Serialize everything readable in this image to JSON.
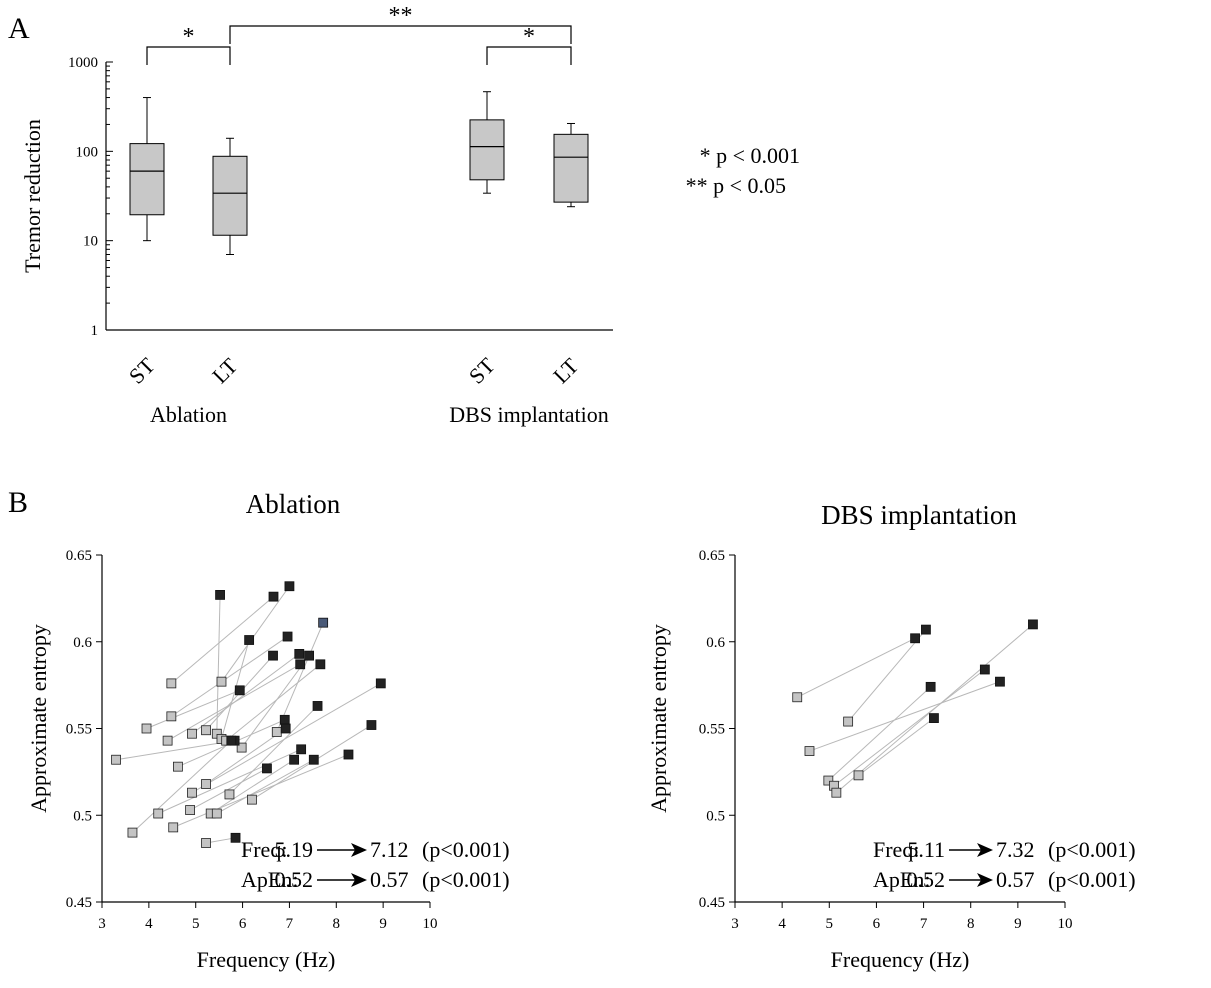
{
  "panel_labels": {
    "a": "A",
    "b": "B"
  },
  "significance_legend": {
    "single": "* p < 0.001",
    "double": "** p < 0.05"
  },
  "colors": {
    "box_fill": "#c8c8c8",
    "early_marker": "#c4c4c4",
    "late_marker": "#222222",
    "line": "#b8b8b8",
    "highlight_marker": "#4a5a78"
  },
  "chart_data": [
    {
      "type": "box",
      "panel": "A",
      "ylabel": "Tremor reduction",
      "yscale": "log",
      "ylim": [
        1,
        1000
      ],
      "yticks": [
        "1",
        "10",
        "100",
        "1000"
      ],
      "group_labels": [
        "Ablation",
        "DBS implantation"
      ],
      "boxes": [
        {
          "group": 0,
          "label": "ST",
          "whisker_low": 10,
          "q1": 19.5,
          "median": 60,
          "q3": 122,
          "whisker_high": 400
        },
        {
          "group": 0,
          "label": "LT",
          "whisker_low": 7,
          "q1": 11.5,
          "median": 34,
          "q3": 88,
          "whisker_high": 140
        },
        {
          "group": 1,
          "label": "ST",
          "whisker_low": 34,
          "q1": 48,
          "median": 113,
          "q3": 225,
          "whisker_high": 465
        },
        {
          "group": 1,
          "label": "LT",
          "whisker_low": 24,
          "q1": 27,
          "median": 86,
          "q3": 155,
          "whisker_high": 205
        }
      ],
      "significance": [
        {
          "from": 0,
          "to": 1,
          "label": "*"
        },
        {
          "from": 1,
          "to": 3,
          "label": "**"
        },
        {
          "from": 2,
          "to": 3,
          "label": "*"
        }
      ]
    },
    {
      "type": "scatter",
      "panel": "B",
      "title": "Ablation",
      "xlabel": "Frequency (Hz)",
      "ylabel": "Approximate entropy",
      "xlim": [
        3,
        10
      ],
      "ylim": [
        0.45,
        0.65
      ],
      "xticks": [
        "3",
        "4",
        "5",
        "6",
        "7",
        "8",
        "9",
        "10"
      ],
      "yticks": [
        "0.45",
        "0.5",
        "0.55",
        "0.6",
        "0.65"
      ],
      "annotation": {
        "freq_label": "Freq:",
        "freq_before": "5.19",
        "freq_after": "7.12",
        "freq_p": "(p<0.001)",
        "apen_label": "ApEn:",
        "apen_before": "0.52",
        "apen_after": "0.57",
        "apen_p": "(p<0.001)"
      },
      "pairs": [
        {
          "before": [
            5.45,
            0.547
          ],
          "after": [
            5.52,
            0.627
          ]
        },
        {
          "before": [
            4.48,
            0.576
          ],
          "after": [
            6.66,
            0.626
          ]
        },
        {
          "before": [
            5.55,
            0.577
          ],
          "after": [
            7.0,
            0.632
          ]
        },
        {
          "before": [
            5.55,
            0.544
          ],
          "after": [
            6.14,
            0.601
          ]
        },
        {
          "before": [
            6.73,
            0.548
          ],
          "after": [
            7.72,
            0.611
          ],
          "after_highlight": true
        },
        {
          "before": [
            4.48,
            0.557
          ],
          "after": [
            6.96,
            0.603
          ]
        },
        {
          "before": [
            5.22,
            0.549
          ],
          "after": [
            6.65,
            0.592
          ]
        },
        {
          "before": [
            3.95,
            0.55
          ],
          "after": [
            5.94,
            0.572
          ]
        },
        {
          "before": [
            4.92,
            0.547
          ],
          "after": [
            7.21,
            0.593
          ]
        },
        {
          "before": [
            5.98,
            0.539
          ],
          "after": [
            7.42,
            0.592
          ]
        },
        {
          "before": [
            4.4,
            0.543
          ],
          "after": [
            7.23,
            0.587
          ]
        },
        {
          "before": [
            5.65,
            0.543
          ],
          "after": [
            7.66,
            0.587
          ]
        },
        {
          "before": [
            3.3,
            0.532
          ],
          "after": [
            5.83,
            0.543
          ]
        },
        {
          "before": [
            4.62,
            0.528
          ],
          "after": [
            6.9,
            0.555
          ]
        },
        {
          "before": [
            5.72,
            0.512
          ],
          "after": [
            7.6,
            0.563
          ]
        },
        {
          "before": [
            4.92,
            0.513
          ],
          "after": [
            8.95,
            0.576
          ]
        },
        {
          "before": [
            5.22,
            0.518
          ],
          "after": [
            6.92,
            0.55
          ]
        },
        {
          "before": [
            6.2,
            0.509
          ],
          "after": [
            8.75,
            0.552
          ]
        },
        {
          "before": [
            3.65,
            0.49
          ],
          "after": [
            5.76,
            0.543
          ]
        },
        {
          "before": [
            4.2,
            0.501
          ],
          "after": [
            7.25,
            0.538
          ]
        },
        {
          "before": [
            4.88,
            0.503
          ],
          "after": [
            6.52,
            0.527
          ]
        },
        {
          "before": [
            5.32,
            0.501
          ],
          "after": [
            7.1,
            0.532
          ]
        },
        {
          "before": [
            5.45,
            0.501
          ],
          "after": [
            7.52,
            0.532
          ]
        },
        {
          "before": [
            4.52,
            0.493
          ],
          "after": [
            8.26,
            0.535
          ]
        },
        {
          "before": [
            5.22,
            0.484
          ],
          "after": [
            5.85,
            0.487
          ]
        }
      ]
    },
    {
      "type": "scatter",
      "panel": "B",
      "title": "DBS implantation",
      "xlabel": "Frequency (Hz)",
      "ylabel": "Approximate entropy",
      "xlim": [
        3,
        10
      ],
      "ylim": [
        0.45,
        0.65
      ],
      "xticks": [
        "3",
        "4",
        "5",
        "6",
        "7",
        "8",
        "9",
        "10"
      ],
      "yticks": [
        "0.45",
        "0.5",
        "0.55",
        "0.6",
        "0.65"
      ],
      "annotation": {
        "freq_label": "Freq:",
        "freq_before": "5.11",
        "freq_after": "7.32",
        "freq_p": "(p<0.001)",
        "apen_label": "ApEn:",
        "apen_before": "0.52",
        "apen_after": "0.57",
        "apen_p": "(p<0.001)"
      },
      "pairs": [
        {
          "before": [
            4.32,
            0.568
          ],
          "after": [
            6.82,
            0.602
          ]
        },
        {
          "before": [
            5.4,
            0.554
          ],
          "after": [
            7.05,
            0.607
          ]
        },
        {
          "before": [
            4.58,
            0.537
          ],
          "after": [
            8.62,
            0.577
          ]
        },
        {
          "before": [
            4.98,
            0.52
          ],
          "after": [
            7.15,
            0.574
          ]
        },
        {
          "before": [
            5.1,
            0.517
          ],
          "after": [
            8.3,
            0.584
          ]
        },
        {
          "before": [
            5.15,
            0.513
          ],
          "after": [
            9.32,
            0.61
          ]
        },
        {
          "before": [
            5.62,
            0.523
          ],
          "after": [
            7.22,
            0.556
          ]
        }
      ]
    }
  ]
}
